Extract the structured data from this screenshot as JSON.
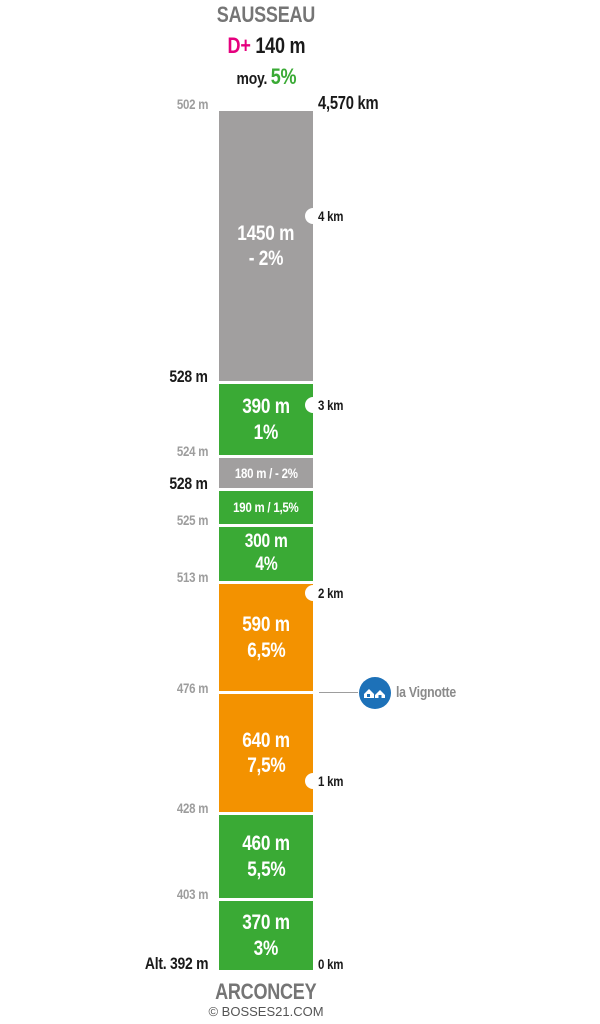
{
  "summit": "SAUSSEAU",
  "start": "ARCONCEY",
  "gain_label": "D+",
  "gain_value": "140 m",
  "avg_label": "moy.",
  "avg_value": "5%",
  "total_distance": "4,570 km",
  "copyright": "© BOSSES21.COM",
  "colors": {
    "uphill": "#3aaa35",
    "downhill": "#a19f9f",
    "steep": "#f39200",
    "gain": "#e5007e"
  },
  "segments": [
    {
      "line1": "1450 m",
      "line2": "- 2%",
      "type": "downhill"
    },
    {
      "line1": "390 m",
      "line2": "1%",
      "type": "uphill"
    },
    {
      "line1": "180 m / - 2%",
      "type": "downhill"
    },
    {
      "line1": "190 m / 1,5%",
      "type": "uphill"
    },
    {
      "line1": "300 m",
      "line2": "4%",
      "type": "uphill"
    },
    {
      "line1": "590 m",
      "line2": "6,5%",
      "type": "steep"
    },
    {
      "line1": "640 m",
      "line2": "7,5%",
      "type": "steep"
    },
    {
      "line1": "460 m",
      "line2": "5,5%",
      "type": "uphill"
    },
    {
      "line1": "370 m",
      "line2": "3%",
      "type": "uphill"
    }
  ],
  "altitudes": [
    "502 m",
    "528 m",
    "524 m",
    "528 m",
    "525 m",
    "513 m",
    "476 m",
    "428 m",
    "403 m",
    "Alt. 392 m"
  ],
  "km_marks": [
    "4 km",
    "3 km",
    "2 km",
    "1 km",
    "0 km"
  ],
  "poi": {
    "name": "la Vignotte",
    "icon": "village-icon"
  }
}
